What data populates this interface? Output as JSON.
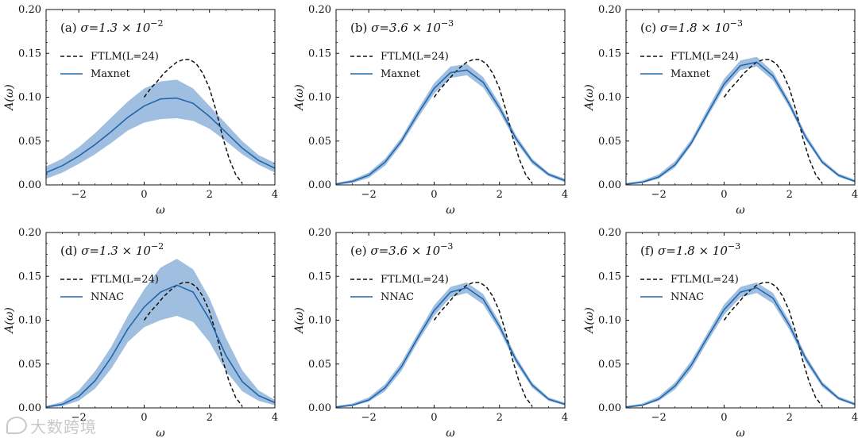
{
  "colors": {
    "model": "#2166ac",
    "band": "#8fb4da",
    "ftlm": "#111111"
  },
  "watermark": {
    "icon": "chat-bubble-icon",
    "text": "大数跨境"
  },
  "chart_data": [
    {
      "type": "line",
      "panel": "(a)",
      "sigma_label": "σ=1.3 × 10",
      "sigma_exp": "−2",
      "xlabel": "ω",
      "ylabel": "A(ω)",
      "xlim": [
        -3,
        4
      ],
      "ylim": [
        0,
        0.2
      ],
      "xticks": [
        -2,
        0,
        2,
        4
      ],
      "xtick_labels": [
        "−2",
        "0",
        "2",
        "4"
      ],
      "yticks": [
        0,
        0.05,
        0.1,
        0.15,
        0.2
      ],
      "ytick_labels": [
        "0.00",
        "0.05",
        "0.10",
        "0.15",
        "0.20"
      ],
      "legend": [
        "FTLM(L=24)",
        "Maxnet"
      ],
      "legend_position": "upper-left",
      "series": [
        {
          "name": "FTLM(L=24)",
          "style": "dashed",
          "x": [
            0.0,
            0.2,
            0.4,
            0.6,
            0.8,
            1.0,
            1.2,
            1.4,
            1.6,
            1.8,
            2.0,
            2.2,
            2.4,
            2.6,
            2.8,
            3.0
          ],
          "y": [
            0.1,
            0.11,
            0.118,
            0.127,
            0.134,
            0.14,
            0.143,
            0.143,
            0.138,
            0.127,
            0.11,
            0.085,
            0.055,
            0.03,
            0.012,
            0.002
          ]
        },
        {
          "name": "Maxnet",
          "style": "solid",
          "x": [
            -3,
            -2.5,
            -2,
            -1.5,
            -1,
            -0.5,
            0,
            0.5,
            1,
            1.5,
            2,
            2.5,
            3,
            3.5,
            4
          ],
          "y": [
            0.014,
            0.022,
            0.033,
            0.046,
            0.061,
            0.077,
            0.09,
            0.098,
            0.099,
            0.093,
            0.078,
            0.06,
            0.042,
            0.028,
            0.019
          ],
          "band_lower": [
            0.007,
            0.014,
            0.024,
            0.035,
            0.048,
            0.062,
            0.071,
            0.075,
            0.076,
            0.073,
            0.064,
            0.05,
            0.035,
            0.023,
            0.014
          ],
          "band_upper": [
            0.021,
            0.03,
            0.043,
            0.059,
            0.077,
            0.095,
            0.11,
            0.118,
            0.12,
            0.11,
            0.09,
            0.07,
            0.05,
            0.034,
            0.025
          ]
        }
      ]
    },
    {
      "type": "line",
      "panel": "(b)",
      "sigma_label": "σ=3.6 × 10",
      "sigma_exp": "−3",
      "xlabel": "ω",
      "ylabel": "A(ω)",
      "xlim": [
        -3,
        4
      ],
      "ylim": [
        0,
        0.2
      ],
      "xticks": [
        -2,
        0,
        2,
        4
      ],
      "xtick_labels": [
        "−2",
        "0",
        "2",
        "4"
      ],
      "yticks": [
        0,
        0.05,
        0.1,
        0.15,
        0.2
      ],
      "ytick_labels": [
        "0.00",
        "0.05",
        "0.10",
        "0.15",
        "0.20"
      ],
      "legend": [
        "FTLM(L=24)",
        "Maxnet"
      ],
      "legend_position": "upper-left",
      "series": [
        {
          "name": "FTLM(L=24)",
          "style": "dashed",
          "x": [
            0.0,
            0.2,
            0.4,
            0.6,
            0.8,
            1.0,
            1.2,
            1.4,
            1.6,
            1.8,
            2.0,
            2.2,
            2.4,
            2.6,
            2.8,
            3.0
          ],
          "y": [
            0.1,
            0.11,
            0.118,
            0.127,
            0.134,
            0.14,
            0.143,
            0.143,
            0.138,
            0.127,
            0.11,
            0.085,
            0.055,
            0.03,
            0.012,
            0.002
          ]
        },
        {
          "name": "Maxnet",
          "style": "solid",
          "x": [
            -3,
            -2.5,
            -2,
            -1.5,
            -1,
            -0.5,
            0,
            0.5,
            1,
            1.5,
            2,
            2.5,
            3,
            3.5,
            4
          ],
          "y": [
            0.001,
            0.004,
            0.011,
            0.026,
            0.05,
            0.081,
            0.11,
            0.128,
            0.131,
            0.117,
            0.088,
            0.053,
            0.027,
            0.012,
            0.005
          ],
          "band_lower": [
            0.0,
            0.002,
            0.008,
            0.022,
            0.046,
            0.076,
            0.104,
            0.122,
            0.125,
            0.111,
            0.083,
            0.049,
            0.024,
            0.01,
            0.003
          ],
          "band_upper": [
            0.002,
            0.006,
            0.014,
            0.03,
            0.054,
            0.086,
            0.116,
            0.135,
            0.138,
            0.123,
            0.093,
            0.057,
            0.03,
            0.014,
            0.007
          ]
        }
      ]
    },
    {
      "type": "line",
      "panel": "(c)",
      "sigma_label": "σ=1.8 × 10",
      "sigma_exp": "−3",
      "xlabel": "ω",
      "ylabel": "A(ω)",
      "xlim": [
        -3,
        4
      ],
      "ylim": [
        0,
        0.2
      ],
      "xticks": [
        -2,
        0,
        2,
        4
      ],
      "xtick_labels": [
        "−2",
        "0",
        "2",
        "4"
      ],
      "yticks": [
        0,
        0.05,
        0.1,
        0.15,
        0.2
      ],
      "ytick_labels": [
        "0.00",
        "0.05",
        "0.10",
        "0.15",
        "0.20"
      ],
      "legend": [
        "FTLM(L=24)",
        "Maxnet"
      ],
      "legend_position": "upper-left",
      "series": [
        {
          "name": "FTLM(L=24)",
          "style": "dashed",
          "x": [
            0.0,
            0.2,
            0.4,
            0.6,
            0.8,
            1.0,
            1.2,
            1.4,
            1.6,
            1.8,
            2.0,
            2.2,
            2.4,
            2.6,
            2.8,
            3.0
          ],
          "y": [
            0.1,
            0.11,
            0.118,
            0.127,
            0.134,
            0.14,
            0.143,
            0.143,
            0.138,
            0.127,
            0.11,
            0.085,
            0.055,
            0.03,
            0.012,
            0.002
          ]
        },
        {
          "name": "Maxnet",
          "style": "solid",
          "x": [
            -3,
            -2.5,
            -2,
            -1.5,
            -1,
            -0.5,
            0,
            0.5,
            1,
            1.5,
            2,
            2.5,
            3,
            3.5,
            4
          ],
          "y": [
            0.001,
            0.003,
            0.009,
            0.023,
            0.048,
            0.082,
            0.115,
            0.136,
            0.14,
            0.124,
            0.092,
            0.054,
            0.026,
            0.011,
            0.004
          ],
          "band_lower": [
            0.0,
            0.002,
            0.007,
            0.02,
            0.045,
            0.078,
            0.11,
            0.131,
            0.135,
            0.119,
            0.088,
            0.051,
            0.024,
            0.009,
            0.003
          ],
          "band_upper": [
            0.002,
            0.005,
            0.012,
            0.027,
            0.052,
            0.087,
            0.121,
            0.142,
            0.146,
            0.129,
            0.096,
            0.058,
            0.029,
            0.013,
            0.006
          ]
        }
      ]
    },
    {
      "type": "line",
      "panel": "(d)",
      "sigma_label": "σ=1.3 × 10",
      "sigma_exp": "−2",
      "xlabel": "ω",
      "ylabel": "A(ω)",
      "xlim": [
        -3,
        4
      ],
      "ylim": [
        0,
        0.2
      ],
      "xticks": [
        -2,
        0,
        2,
        4
      ],
      "xtick_labels": [
        "−2",
        "0",
        "2",
        "4"
      ],
      "yticks": [
        0,
        0.05,
        0.1,
        0.15,
        0.2
      ],
      "ytick_labels": [
        "0.00",
        "0.05",
        "0.10",
        "0.15",
        "0.20"
      ],
      "legend": [
        "FTLM(L=24)",
        "NNAC"
      ],
      "legend_position": "upper-left",
      "series": [
        {
          "name": "FTLM(L=24)",
          "style": "dashed",
          "x": [
            0.0,
            0.2,
            0.4,
            0.6,
            0.8,
            1.0,
            1.2,
            1.4,
            1.6,
            1.8,
            2.0,
            2.2,
            2.4,
            2.6,
            2.8,
            3.0
          ],
          "y": [
            0.1,
            0.11,
            0.118,
            0.127,
            0.134,
            0.14,
            0.143,
            0.143,
            0.138,
            0.127,
            0.11,
            0.085,
            0.055,
            0.03,
            0.012,
            0.002
          ]
        },
        {
          "name": "NNAC",
          "style": "solid",
          "x": [
            -3,
            -2.5,
            -2,
            -1.5,
            -1,
            -0.5,
            0,
            0.5,
            1,
            1.5,
            2,
            2.5,
            3,
            3.5,
            4
          ],
          "y": [
            0.001,
            0.004,
            0.013,
            0.031,
            0.058,
            0.09,
            0.115,
            0.132,
            0.14,
            0.132,
            0.101,
            0.06,
            0.03,
            0.014,
            0.006
          ],
          "band_lower": [
            0.0,
            0.002,
            0.008,
            0.022,
            0.045,
            0.075,
            0.092,
            0.1,
            0.105,
            0.098,
            0.075,
            0.042,
            0.019,
            0.008,
            0.003
          ],
          "band_upper": [
            0.002,
            0.007,
            0.02,
            0.042,
            0.07,
            0.105,
            0.135,
            0.16,
            0.17,
            0.158,
            0.125,
            0.08,
            0.043,
            0.02,
            0.009
          ]
        }
      ]
    },
    {
      "type": "line",
      "panel": "(e)",
      "sigma_label": "σ=3.6 × 10",
      "sigma_exp": "−3",
      "xlabel": "ω",
      "ylabel": "A(ω)",
      "xlim": [
        -3,
        4
      ],
      "ylim": [
        0,
        0.2
      ],
      "xticks": [
        -2,
        0,
        2,
        4
      ],
      "xtick_labels": [
        "−2",
        "0",
        "2",
        "4"
      ],
      "yticks": [
        0,
        0.05,
        0.1,
        0.15,
        0.2
      ],
      "ytick_labels": [
        "0.00",
        "0.05",
        "0.10",
        "0.15",
        "0.20"
      ],
      "legend": [
        "FTLM(L=24)",
        "NNAC"
      ],
      "legend_position": "upper-left",
      "series": [
        {
          "name": "FTLM(L=24)",
          "style": "dashed",
          "x": [
            0.0,
            0.2,
            0.4,
            0.6,
            0.8,
            1.0,
            1.2,
            1.4,
            1.6,
            1.8,
            2.0,
            2.2,
            2.4,
            2.6,
            2.8,
            3.0
          ],
          "y": [
            0.1,
            0.11,
            0.118,
            0.127,
            0.134,
            0.14,
            0.143,
            0.143,
            0.138,
            0.127,
            0.11,
            0.085,
            0.055,
            0.03,
            0.012,
            0.002
          ]
        },
        {
          "name": "NNAC",
          "style": "solid",
          "x": [
            -3,
            -2.5,
            -2,
            -1.5,
            -1,
            -0.5,
            0,
            0.5,
            1,
            1.5,
            2,
            2.5,
            3,
            3.5,
            4
          ],
          "y": [
            0.001,
            0.003,
            0.009,
            0.023,
            0.047,
            0.08,
            0.111,
            0.132,
            0.137,
            0.124,
            0.093,
            0.055,
            0.026,
            0.01,
            0.004
          ],
          "band_lower": [
            0.0,
            0.002,
            0.007,
            0.019,
            0.042,
            0.075,
            0.105,
            0.126,
            0.131,
            0.118,
            0.088,
            0.051,
            0.023,
            0.008,
            0.003
          ],
          "band_upper": [
            0.002,
            0.005,
            0.012,
            0.027,
            0.052,
            0.085,
            0.117,
            0.138,
            0.143,
            0.13,
            0.098,
            0.059,
            0.029,
            0.012,
            0.006
          ]
        }
      ]
    },
    {
      "type": "line",
      "panel": "(f)",
      "sigma_label": "σ=1.8 × 10",
      "sigma_exp": "−3",
      "xlabel": "ω",
      "ylabel": "A(ω)",
      "xlim": [
        -3,
        4
      ],
      "ylim": [
        0,
        0.2
      ],
      "xticks": [
        -2,
        0,
        2,
        4
      ],
      "xtick_labels": [
        "−2",
        "0",
        "2",
        "4"
      ],
      "yticks": [
        0,
        0.05,
        0.1,
        0.15,
        0.2
      ],
      "ytick_labels": [
        "0.00",
        "0.05",
        "0.10",
        "0.15",
        "0.20"
      ],
      "legend": [
        "FTLM(L=24)",
        "NNAC"
      ],
      "legend_position": "upper-left",
      "series": [
        {
          "name": "FTLM(L=24)",
          "style": "dashed",
          "x": [
            0.0,
            0.2,
            0.4,
            0.6,
            0.8,
            1.0,
            1.2,
            1.4,
            1.6,
            1.8,
            2.0,
            2.2,
            2.4,
            2.6,
            2.8,
            3.0
          ],
          "y": [
            0.1,
            0.11,
            0.118,
            0.127,
            0.134,
            0.14,
            0.143,
            0.143,
            0.138,
            0.127,
            0.11,
            0.085,
            0.055,
            0.03,
            0.012,
            0.002
          ]
        },
        {
          "name": "NNAC",
          "style": "solid",
          "x": [
            -3,
            -2.5,
            -2,
            -1.5,
            -1,
            -0.5,
            0,
            0.5,
            1,
            1.5,
            2,
            2.5,
            3,
            3.5,
            4
          ],
          "y": [
            0.001,
            0.003,
            0.01,
            0.025,
            0.049,
            0.081,
            0.112,
            0.132,
            0.137,
            0.125,
            0.094,
            0.056,
            0.027,
            0.011,
            0.004
          ],
          "band_lower": [
            0.0,
            0.002,
            0.008,
            0.021,
            0.044,
            0.076,
            0.106,
            0.126,
            0.131,
            0.119,
            0.089,
            0.052,
            0.024,
            0.009,
            0.003
          ],
          "band_upper": [
            0.002,
            0.005,
            0.013,
            0.029,
            0.054,
            0.086,
            0.118,
            0.138,
            0.143,
            0.131,
            0.099,
            0.06,
            0.03,
            0.013,
            0.006
          ]
        }
      ]
    }
  ]
}
